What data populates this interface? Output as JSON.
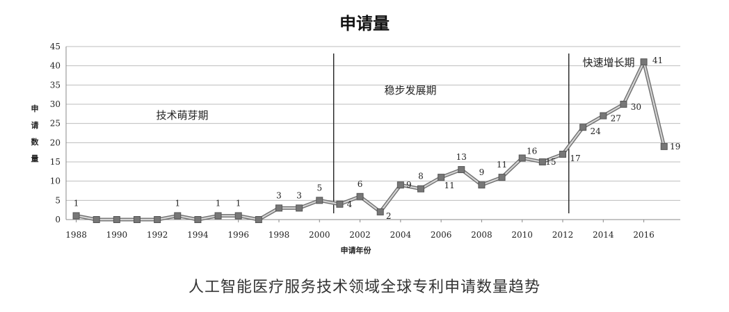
{
  "chart_data": {
    "type": "line",
    "title": "申请量",
    "caption": "人工智能医疗服务技术领域全球专利申请数量趋势",
    "xlabel": "申请年份",
    "ylabel": "申请数量",
    "ylim": [
      0,
      45
    ],
    "y_ticks": [
      "0",
      "5",
      "10",
      "15",
      "20",
      "25",
      "30",
      "35",
      "40",
      "45"
    ],
    "x_tick_labels": [
      "1988",
      "1990",
      "1992",
      "1994",
      "1996",
      "1998",
      "2000",
      "2002",
      "2004",
      "2006",
      "2008",
      "2010",
      "2012",
      "2014",
      "2016"
    ],
    "grid": "horizontal",
    "x": [
      1988,
      1989,
      1990,
      1991,
      1992,
      1993,
      1994,
      1995,
      1996,
      1997,
      1998,
      1999,
      2000,
      2001,
      2002,
      2003,
      2004,
      2005,
      2006,
      2007,
      2008,
      2009,
      2010,
      2011,
      2012,
      2013,
      2014,
      2015,
      2016,
      2017
    ],
    "values": [
      1,
      0,
      0,
      0,
      0,
      1,
      0,
      1,
      1,
      0,
      3,
      3,
      5,
      4,
      6,
      2,
      9,
      8,
      11,
      13,
      9,
      11,
      16,
      15,
      17,
      24,
      27,
      30,
      41,
      19
    ],
    "data_labels": [
      "1",
      "",
      "",
      "",
      "",
      "1",
      "",
      "1",
      "1",
      "",
      "3",
      "3",
      "5",
      "4",
      "6",
      "2",
      "9",
      "8",
      "11",
      "13",
      "9",
      "11",
      "16",
      "15",
      "17",
      "24",
      "27",
      "30",
      "41",
      "19"
    ],
    "phase_dividers": [
      2000.7,
      2012.3
    ],
    "phases": [
      {
        "label": "技术萌芽期"
      },
      {
        "label": "稳步发展期"
      },
      {
        "label": "快速增长期"
      }
    ],
    "colors": {
      "line": "#aaaaaa",
      "marker": "#777777",
      "grid": "#bdbdbd",
      "axis": "#888888",
      "divider": "#222222"
    }
  }
}
